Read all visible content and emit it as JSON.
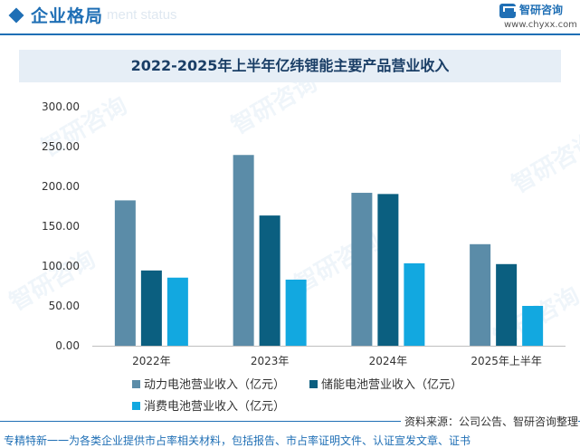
{
  "header": {
    "section_title": "企业格局",
    "ghost_text": "ment status",
    "logo_name": "智研咨询",
    "logo_url": "www.chyxx.com"
  },
  "watermark": "智研咨询",
  "chart_data": {
    "type": "bar",
    "title": "2022-2025年上半年亿纬锂能主要产品营业收入",
    "categories": [
      "2022年",
      "2023年",
      "2024年",
      "2025年上半年"
    ],
    "series": [
      {
        "name": "动力电池营业收入（亿元）",
        "values": [
          182.5,
          239.5,
          192.0,
          127.5
        ],
        "color": "#5b8ca8"
      },
      {
        "name": "储能电池营业收入（亿元）",
        "values": [
          94.5,
          163.5,
          190.5,
          102.5
        ],
        "color": "#0b5f80"
      },
      {
        "name": "消费电池营业收入（亿元）",
        "values": [
          85.5,
          83.0,
          103.5,
          50.0
        ],
        "color": "#12a8e0"
      }
    ],
    "yticks": [
      "300.00",
      "250.00",
      "200.00",
      "150.00",
      "100.00",
      "50.00",
      "0.00"
    ],
    "ylim": [
      0,
      300
    ],
    "grid": false,
    "legend_position": "bottom"
  },
  "source": "资料来源：公司公告、智研咨询整理",
  "footer": "专精特新一一为各类企业提供市占率相关材料，包括报告、市占率证明文件、认证宣发文章、证书"
}
